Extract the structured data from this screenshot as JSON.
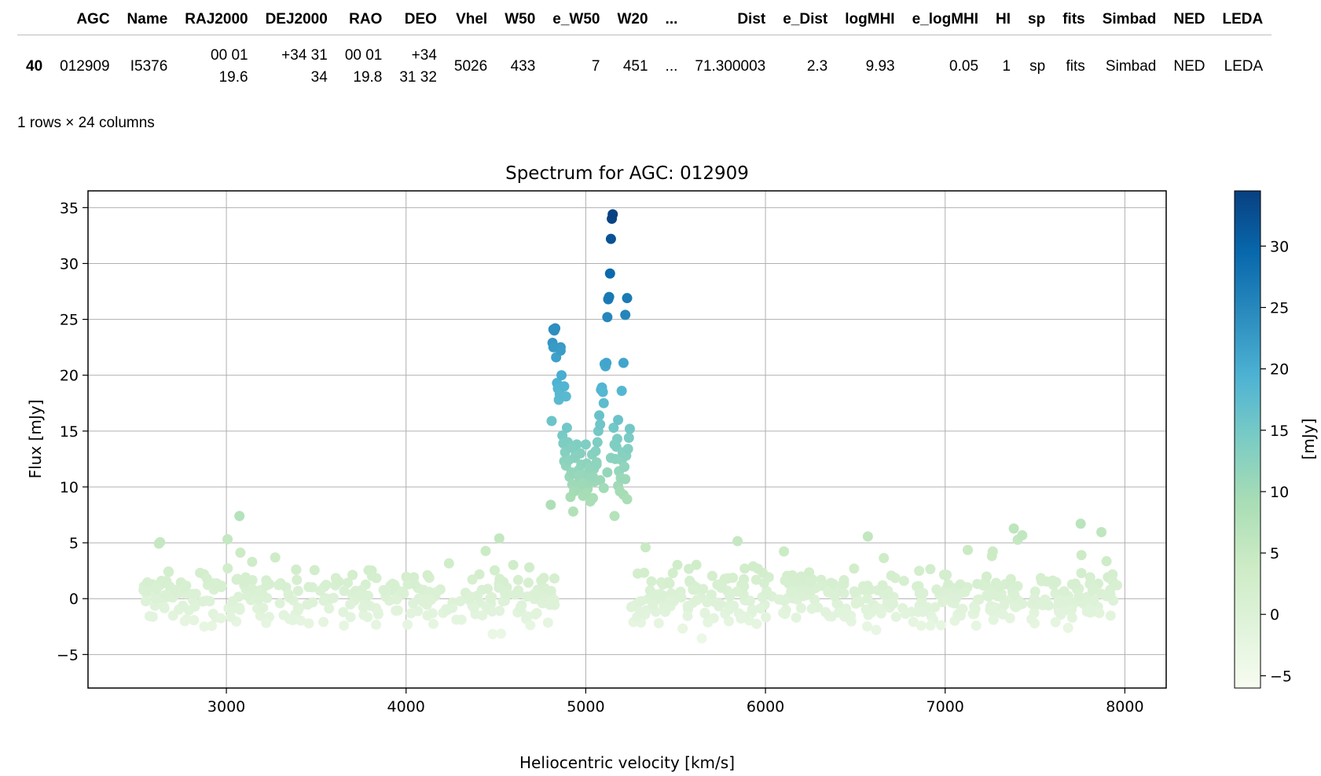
{
  "table": {
    "columns": [
      "",
      "AGC",
      "Name",
      "RAJ2000",
      "DEJ2000",
      "RAO",
      "DEO",
      "Vhel",
      "W50",
      "e_W50",
      "W20",
      "...",
      "Dist",
      "e_Dist",
      "logMHI",
      "e_logMHI",
      "HI",
      "sp",
      "fits",
      "Simbad",
      "NED",
      "LEDA"
    ],
    "row": {
      "index": "40",
      "cells": [
        {
          "lines": [
            "012909"
          ]
        },
        {
          "lines": [
            "I5376"
          ]
        },
        {
          "lines": [
            "00 01",
            "19.6"
          ]
        },
        {
          "lines": [
            "+34 31",
            "34"
          ]
        },
        {
          "lines": [
            "00 01",
            "19.8"
          ]
        },
        {
          "lines": [
            "+34",
            "31 32"
          ]
        },
        {
          "lines": [
            "5026"
          ]
        },
        {
          "lines": [
            "433"
          ]
        },
        {
          "lines": [
            "7"
          ]
        },
        {
          "lines": [
            "451"
          ]
        },
        {
          "lines": [
            "..."
          ]
        },
        {
          "lines": [
            "71.300003"
          ]
        },
        {
          "lines": [
            "2.3"
          ]
        },
        {
          "lines": [
            "9.93"
          ]
        },
        {
          "lines": [
            "0.05"
          ]
        },
        {
          "lines": [
            "1"
          ]
        },
        {
          "lines": [
            "sp"
          ]
        },
        {
          "lines": [
            "fits"
          ]
        },
        {
          "lines": [
            "Simbad"
          ]
        },
        {
          "lines": [
            "NED"
          ]
        },
        {
          "lines": [
            "LEDA"
          ]
        }
      ]
    },
    "shape_text": "1 rows × 24 columns"
  },
  "chart_data": {
    "type": "scatter",
    "title": "Spectrum for AGC: 012909",
    "xlabel": "Heliocentric velocity [km/s]",
    "ylabel": "Flux [mJy]",
    "xlim": [
      2230,
      8230
    ],
    "ylim": [
      -8,
      36.5
    ],
    "xticks": [
      3000,
      4000,
      5000,
      6000,
      7000,
      8000
    ],
    "yticks": [
      35,
      30,
      25,
      20,
      15,
      10,
      5,
      0,
      -5
    ],
    "ytick_labels": [
      "35",
      "30",
      "25",
      "20",
      "15",
      "10",
      "5",
      "0",
      "−5"
    ],
    "grid": true,
    "colormap": "GnBu",
    "colorbar": {
      "label": "[mJy]",
      "range": [
        -6,
        34.5
      ],
      "ticks": [
        30,
        25,
        20,
        15,
        10,
        5,
        0,
        -5
      ],
      "tick_labels": [
        "30",
        "25",
        "20",
        "15",
        "10",
        "5",
        "0",
        "−5"
      ]
    },
    "baseline": {
      "x_ranges": [
        [
          2520,
          4830
        ],
        [
          5240,
          7960
        ]
      ],
      "y_center": 0.1,
      "y_spread": 2.1,
      "point_count": 720
    },
    "signal_points": {
      "x": [
        4805,
        4810,
        4815,
        4820,
        4825,
        4830,
        4835,
        4840,
        4845,
        4850,
        4855,
        4860,
        4865,
        4870,
        4875,
        4880,
        4885,
        4890,
        4895,
        4900,
        4905,
        4910,
        4915,
        4920,
        4925,
        4930,
        4935,
        4940,
        4945,
        4950,
        4955,
        4960,
        4965,
        4970,
        4975,
        4980,
        4985,
        4990,
        4995,
        5000,
        5005,
        5010,
        5015,
        5020,
        5025,
        5030,
        5035,
        5040,
        5045,
        5050,
        5055,
        5060,
        5065,
        5070,
        5075,
        5080,
        5085,
        5090,
        5095,
        5100,
        5105,
        5110,
        5115,
        5120,
        5125,
        5130,
        5135,
        5140,
        5145,
        5150,
        5155,
        5160,
        5165,
        5170,
        5175,
        5180,
        5185,
        5190,
        5195,
        5200,
        5205,
        5210,
        5215,
        5220,
        5225,
        5230,
        5235,
        5240,
        5245,
        4820,
        4860,
        4880,
        4890,
        4920,
        4940,
        4960,
        4980,
        5000,
        5020,
        5040,
        5060,
        5080,
        5100,
        5120,
        5140,
        5160,
        5180,
        5200,
        5210,
        5220,
        5230
      ],
      "y": [
        8.4,
        15.9,
        22.9,
        22.5,
        24.0,
        24.2,
        21.6,
        19.3,
        18.8,
        17.8,
        18.3,
        22.5,
        20.0,
        14.6,
        13.9,
        12.3,
        13.1,
        11.9,
        15.3,
        14.0,
        12.4,
        10.9,
        9.1,
        11.3,
        10.2,
        7.8,
        9.6,
        12.6,
        13.2,
        13.8,
        10.3,
        11.5,
        9.7,
        13.0,
        12.0,
        10.6,
        9.2,
        11.1,
        10.0,
        13.8,
        12.1,
        9.8,
        11.2,
        10.4,
        8.7,
        10.9,
        12.9,
        9.0,
        11.6,
        10.5,
        13.2,
        12.2,
        14.0,
        15.0,
        16.4,
        15.6,
        18.7,
        18.9,
        18.5,
        17.5,
        21.0,
        20.8,
        21.1,
        25.2,
        26.8,
        27.0,
        29.1,
        32.2,
        34.0,
        34.4,
        15.3,
        7.4,
        12.5,
        13.6,
        14.3,
        10.1,
        11.4,
        9.6,
        10.8,
        12.4,
        13.1,
        9.3,
        11.8,
        10.7,
        12.8,
        8.9,
        13.4,
        14.4,
        15.2,
        24.1,
        22.2,
        19.0,
        18.1,
        13.5,
        12.7,
        11.0,
        10.3,
        9.4,
        11.7,
        10.9,
        12.0,
        10.6,
        9.9,
        11.3,
        12.6,
        13.8,
        16.0,
        18.6,
        21.1,
        25.4,
        26.9
      ],
      "note_hidden": ""
    }
  }
}
